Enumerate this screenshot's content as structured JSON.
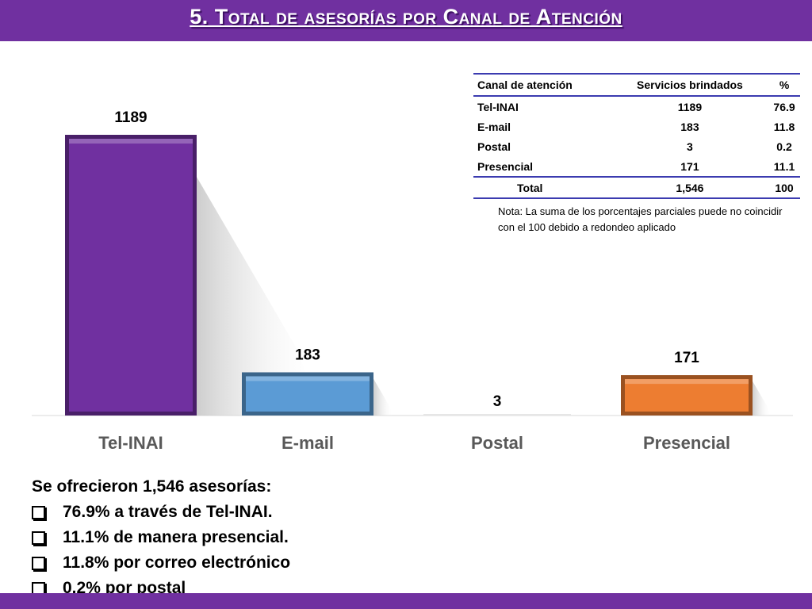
{
  "title": "5. Total de asesorías por Canal de Atención",
  "colors": {
    "header": "#7030a0",
    "tel_inai": "#7030a0",
    "email": "#5b9bd5",
    "postal": "#a5a5a5",
    "presencial": "#ed7d31"
  },
  "chart_data": {
    "type": "bar",
    "categories": [
      "Tel-INAI",
      "E-mail",
      "Postal",
      "Presencial"
    ],
    "values": [
      1189,
      183,
      3,
      171
    ],
    "data_labels": [
      "1189",
      "183",
      "3",
      "171"
    ],
    "title": "",
    "xlabel": "",
    "ylabel": "",
    "ylim": [
      0,
      1189
    ],
    "grid": false,
    "legend": "none"
  },
  "table": {
    "headers": [
      "Canal de atención",
      "Servicios brindados",
      "%"
    ],
    "rows": [
      [
        "Tel-INAI",
        "1189",
        "76.9"
      ],
      [
        "E-mail",
        "183",
        "11.8"
      ],
      [
        "Postal",
        "3",
        "0.2"
      ],
      [
        "Presencial",
        "171",
        "11.1"
      ]
    ],
    "total": [
      "Total",
      "1,546",
      "100"
    ]
  },
  "note": "Nota: La suma de los porcentajes parciales puede no coincidir con el 100 debido a redondeo aplicado",
  "summary": {
    "heading": "Se ofrecieron 1,546 asesorías:",
    "items": [
      "76.9% a través de Tel-INAI.",
      "11.1% de manera presencial.",
      "11.8% por correo electrónico",
      "0.2% por postal"
    ]
  }
}
